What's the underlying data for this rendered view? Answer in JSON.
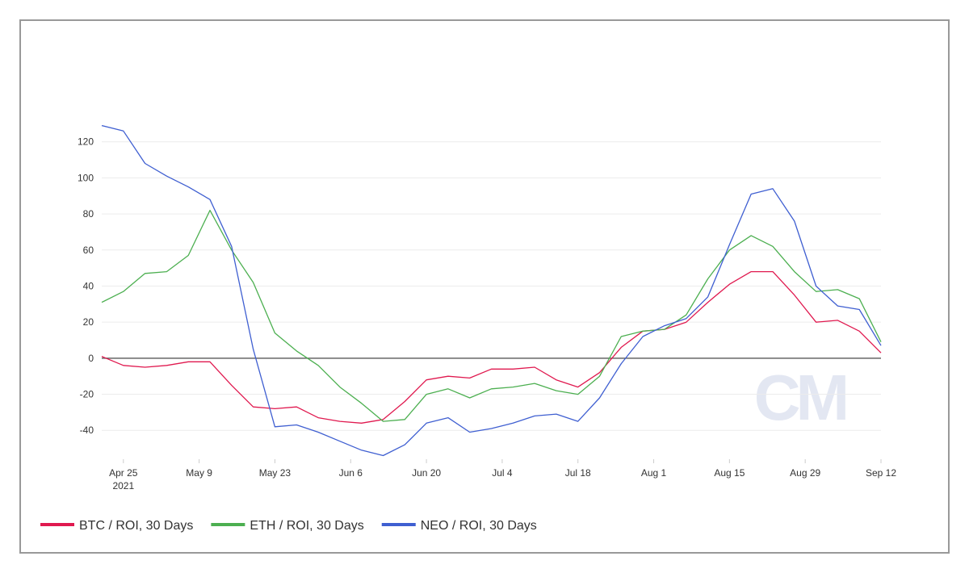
{
  "chart_data": {
    "type": "line",
    "x": [
      "2021-04-21",
      "2021-04-25",
      "2021-04-29",
      "2021-05-03",
      "2021-05-07",
      "2021-05-11",
      "2021-05-15",
      "2021-05-19",
      "2021-05-23",
      "2021-05-27",
      "2021-05-31",
      "2021-06-04",
      "2021-06-08",
      "2021-06-12",
      "2021-06-16",
      "2021-06-20",
      "2021-06-24",
      "2021-06-28",
      "2021-07-02",
      "2021-07-06",
      "2021-07-10",
      "2021-07-14",
      "2021-07-18",
      "2021-07-22",
      "2021-07-26",
      "2021-07-30",
      "2021-08-03",
      "2021-08-07",
      "2021-08-11",
      "2021-08-15",
      "2021-08-19",
      "2021-08-23",
      "2021-08-27",
      "2021-08-31",
      "2021-09-04",
      "2021-09-08",
      "2021-09-12"
    ],
    "series": [
      {
        "name": "BTC / ROI, 30 Days",
        "color": "#e0194f",
        "values": [
          1,
          -4,
          -5,
          -4,
          -2,
          -2,
          -15,
          -27,
          -28,
          -27,
          -33,
          -35,
          -36,
          -34,
          -24,
          -12,
          -10,
          -11,
          -6,
          -6,
          -5,
          -12,
          -16,
          -8,
          6,
          15,
          16,
          20,
          31,
          41,
          48,
          48,
          35,
          20,
          21,
          15,
          3
        ]
      },
      {
        "name": "ETH / ROI, 30 Days",
        "color": "#4caf50",
        "values": [
          31,
          37,
          47,
          48,
          57,
          82,
          60,
          42,
          14,
          4,
          -4,
          -16,
          -25,
          -35,
          -34,
          -20,
          -17,
          -22,
          -17,
          -16,
          -14,
          -18,
          -20,
          -10,
          12,
          15,
          16,
          24,
          44,
          60,
          68,
          62,
          48,
          37,
          38,
          33,
          9
        ]
      },
      {
        "name": "NEO / ROI, 30 Days",
        "color": "#3f5fd1",
        "values": [
          129,
          126,
          108,
          101,
          95,
          88,
          62,
          5,
          -38,
          -37,
          -41,
          -46,
          -51,
          -54,
          -48,
          -36,
          -33,
          -41,
          -39,
          -36,
          -32,
          -31,
          -35,
          -22,
          -3,
          12,
          18,
          22,
          34,
          63,
          91,
          94,
          76,
          40,
          29,
          27,
          7
        ]
      }
    ],
    "xlim": [
      "2021-04-21",
      "2021-09-12"
    ],
    "xticks": [
      {
        "value": "2021-04-25",
        "label": "Apr 25\n2021"
      },
      {
        "value": "2021-05-09",
        "label": "May 9"
      },
      {
        "value": "2021-05-23",
        "label": "May 23"
      },
      {
        "value": "2021-06-06",
        "label": "Jun 6"
      },
      {
        "value": "2021-06-20",
        "label": "Jun 20"
      },
      {
        "value": "2021-07-04",
        "label": "Jul 4"
      },
      {
        "value": "2021-07-18",
        "label": "Jul 18"
      },
      {
        "value": "2021-08-01",
        "label": "Aug 1"
      },
      {
        "value": "2021-08-15",
        "label": "Aug 15"
      },
      {
        "value": "2021-08-29",
        "label": "Aug 29"
      },
      {
        "value": "2021-09-12",
        "label": "Sep 12"
      }
    ],
    "ylim": [
      -56,
      140
    ],
    "yticks": [
      -40,
      -20,
      0,
      20,
      40,
      60,
      80,
      100,
      120
    ],
    "grid": true,
    "legend": "bottom-left",
    "watermark": "CM"
  }
}
